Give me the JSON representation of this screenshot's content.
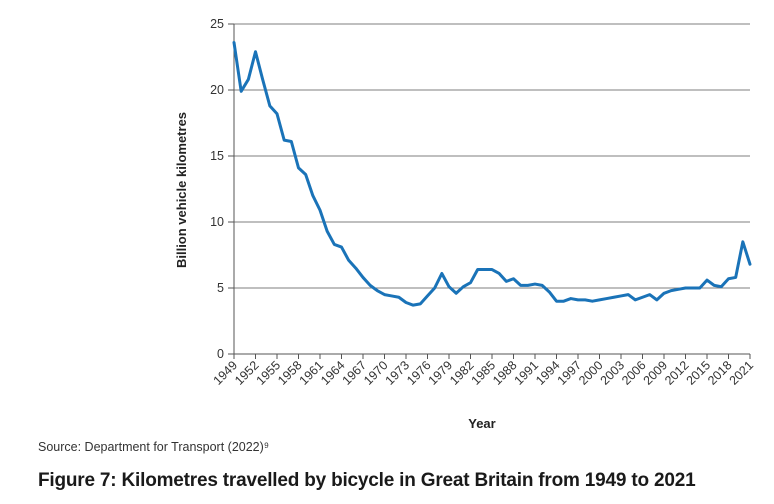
{
  "figure": {
    "source": "Source: Department for Transport (2022)⁹",
    "caption": "Figure 7: Kilometres travelled by bicycle in Great Britain from 1949 to 2021"
  },
  "colors": {
    "line": "#1a73b8",
    "grid": "#7f7f7f",
    "axis": "#555555"
  },
  "chart_data": {
    "type": "line",
    "xlabel": "Year",
    "ylabel": "Billion vehicle kilometres",
    "ylim": [
      0,
      25
    ],
    "yticks": [
      0,
      5,
      10,
      15,
      20,
      25
    ],
    "xlim": [
      1949,
      2021
    ],
    "xticks": [
      "1949",
      "1952",
      "1955",
      "1958",
      "1961",
      "1964",
      "1967",
      "1970",
      "1973",
      "1976",
      "1979",
      "1982",
      "1985",
      "1988",
      "1991",
      "1994",
      "1997",
      "2000",
      "2003",
      "2006",
      "2009",
      "2012",
      "2015",
      "2018",
      "2021"
    ],
    "grid": "horizontal",
    "x": [
      1949,
      1950,
      1951,
      1952,
      1953,
      1954,
      1955,
      1956,
      1957,
      1958,
      1959,
      1960,
      1961,
      1962,
      1963,
      1964,
      1965,
      1966,
      1967,
      1968,
      1969,
      1970,
      1971,
      1972,
      1973,
      1974,
      1975,
      1976,
      1977,
      1978,
      1979,
      1980,
      1981,
      1982,
      1983,
      1984,
      1985,
      1986,
      1987,
      1988,
      1989,
      1990,
      1991,
      1992,
      1993,
      1994,
      1995,
      1996,
      1997,
      1998,
      1999,
      2000,
      2001,
      2002,
      2003,
      2004,
      2005,
      2006,
      2007,
      2008,
      2009,
      2010,
      2011,
      2012,
      2013,
      2014,
      2015,
      2016,
      2017,
      2018,
      2019,
      2020,
      2021
    ],
    "y": [
      23.6,
      19.9,
      20.8,
      22.9,
      20.8,
      18.8,
      18.2,
      16.2,
      16.1,
      14.1,
      13.6,
      12.0,
      10.9,
      9.3,
      8.3,
      8.1,
      7.1,
      6.5,
      5.8,
      5.2,
      4.8,
      4.5,
      4.4,
      4.3,
      3.9,
      3.7,
      3.8,
      4.4,
      5.0,
      6.1,
      5.1,
      4.6,
      5.1,
      5.4,
      6.4,
      6.4,
      6.4,
      6.1,
      5.5,
      5.7,
      5.2,
      5.2,
      5.3,
      5.2,
      4.7,
      4.0,
      4.0,
      4.2,
      4.1,
      4.1,
      4.0,
      4.1,
      4.2,
      4.3,
      4.4,
      4.5,
      4.1,
      4.3,
      4.5,
      4.1,
      4.6,
      4.8,
      4.9,
      5.0,
      5.0,
      5.0,
      5.6,
      5.2,
      5.1,
      5.7,
      5.8,
      8.5,
      6.8
    ]
  }
}
